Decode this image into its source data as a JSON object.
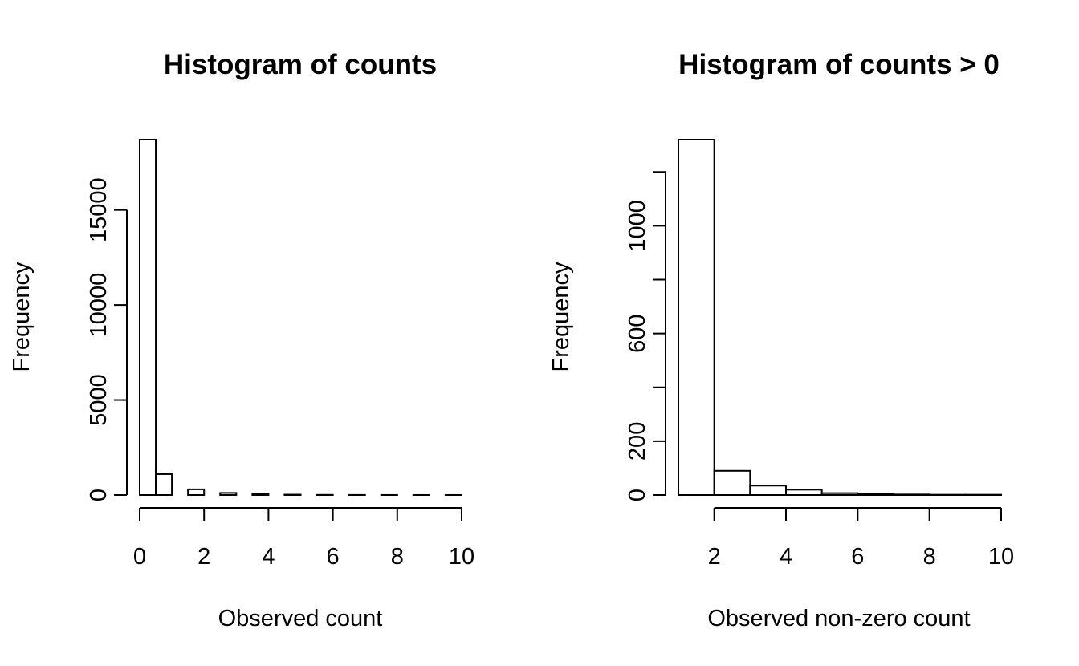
{
  "chart_data": [
    {
      "type": "bar",
      "title": "Histogram of counts",
      "xlabel": "Observed count",
      "ylabel": "Frequency",
      "x_ticks": [
        "0",
        "2",
        "4",
        "6",
        "8",
        "10"
      ],
      "y_ticks": [
        "0",
        "5000",
        "10000",
        "15000"
      ],
      "xlim": [
        0,
        10
      ],
      "ylim": [
        0,
        18700
      ],
      "bins": [
        {
          "start": 0,
          "end": 0.5,
          "value": 18700
        },
        {
          "start": 0.5,
          "end": 1,
          "value": 1100
        },
        {
          "start": 1,
          "end": 1.5,
          "value": 0
        },
        {
          "start": 1.5,
          "end": 2,
          "value": 300
        },
        {
          "start": 2,
          "end": 2.5,
          "value": 0
        },
        {
          "start": 2.5,
          "end": 3,
          "value": 110
        },
        {
          "start": 3,
          "end": 3.5,
          "value": 0
        },
        {
          "start": 3.5,
          "end": 4,
          "value": 45
        },
        {
          "start": 4,
          "end": 4.5,
          "value": 0
        },
        {
          "start": 4.5,
          "end": 5,
          "value": 20
        },
        {
          "start": 5,
          "end": 5.5,
          "value": 0
        },
        {
          "start": 5.5,
          "end": 6,
          "value": 8
        },
        {
          "start": 6,
          "end": 6.5,
          "value": 0
        },
        {
          "start": 6.5,
          "end": 7,
          "value": 4
        },
        {
          "start": 7,
          "end": 7.5,
          "value": 0
        },
        {
          "start": 7.5,
          "end": 8,
          "value": 2
        },
        {
          "start": 8,
          "end": 8.5,
          "value": 0
        },
        {
          "start": 8.5,
          "end": 9,
          "value": 1
        },
        {
          "start": 9,
          "end": 9.5,
          "value": 0
        },
        {
          "start": 9.5,
          "end": 10,
          "value": 1
        }
      ],
      "grid": false
    },
    {
      "type": "bar",
      "title": "Histogram of counts > 0",
      "xlabel": "Observed non-zero count",
      "ylabel": "Frequency",
      "x_ticks": [
        "2",
        "4",
        "6",
        "8",
        "10"
      ],
      "y_ticks": [
        "0",
        "200",
        "600",
        "1000"
      ],
      "y_tick_values": [
        0,
        200,
        400,
        600,
        800,
        1000,
        1200
      ],
      "xlim": [
        1,
        10
      ],
      "ylim": [
        0,
        1320
      ],
      "bins": [
        {
          "start": 1,
          "end": 2,
          "value": 1320
        },
        {
          "start": 2,
          "end": 3,
          "value": 90
        },
        {
          "start": 3,
          "end": 4,
          "value": 35
        },
        {
          "start": 4,
          "end": 5,
          "value": 20
        },
        {
          "start": 5,
          "end": 6,
          "value": 7
        },
        {
          "start": 6,
          "end": 7,
          "value": 3
        },
        {
          "start": 7,
          "end": 8,
          "value": 2
        },
        {
          "start": 8,
          "end": 9,
          "value": 1
        },
        {
          "start": 9,
          "end": 10,
          "value": 1
        }
      ],
      "grid": false
    }
  ]
}
